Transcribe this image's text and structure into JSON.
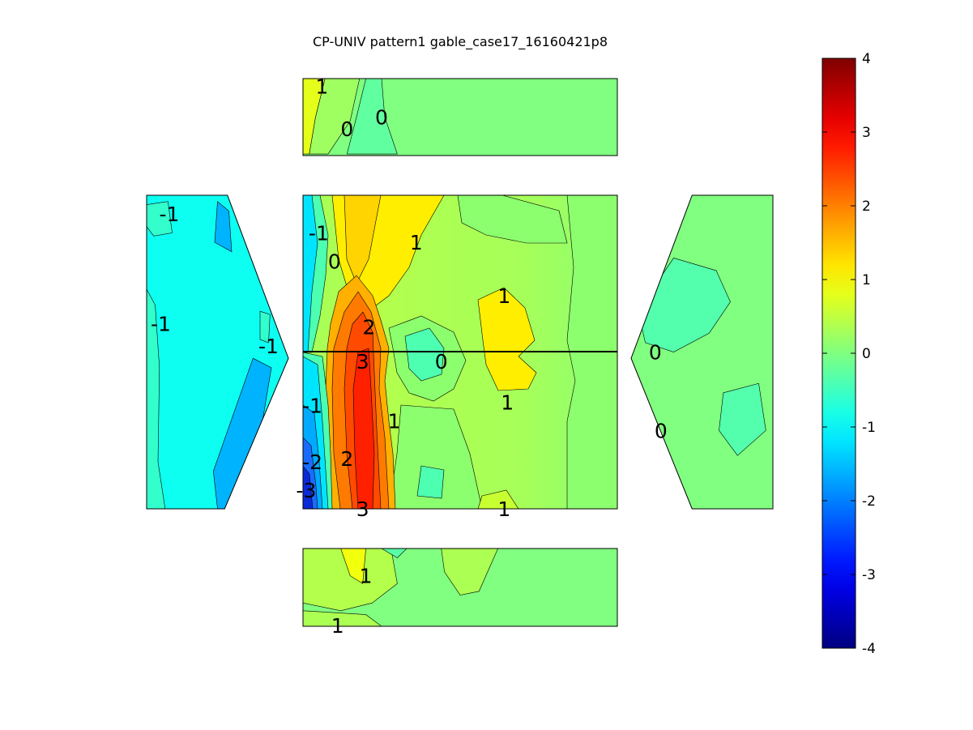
{
  "chart_data": {
    "type": "contour",
    "title": "CP-UNIV pattern1 gable_case17_16160421p8",
    "colorbar": {
      "min": -4,
      "max": 4,
      "ticks": [
        4,
        3,
        2,
        1,
        0,
        -1,
        -2,
        -3,
        -4
      ],
      "colormap": "jet"
    },
    "panels": [
      {
        "name": "top-face",
        "background_value": 0.0,
        "regions": [
          {
            "value": 0.8,
            "points": [
              [
                0,
                0
              ],
              [
                0.07,
                0
              ],
              [
                0.04,
                0.5
              ],
              [
                0.02,
                0.98
              ],
              [
                0,
                0.98
              ]
            ]
          },
          {
            "value": 0.25,
            "points": [
              [
                0.07,
                0
              ],
              [
                0.18,
                0
              ],
              [
                0.15,
                0.55
              ],
              [
                0.08,
                0.98
              ],
              [
                0.02,
                0.98
              ],
              [
                0.04,
                0.5
              ]
            ]
          },
          {
            "value": -0.25,
            "points": [
              [
                0.2,
                0
              ],
              [
                0.25,
                0
              ],
              [
                0.26,
                0.5
              ],
              [
                0.3,
                0.98
              ],
              [
                0.14,
                0.98
              ],
              [
                0.17,
                0.5
              ]
            ]
          }
        ],
        "labels": [
          {
            "text": "1",
            "x": 0.06,
            "y": 0.1
          },
          {
            "text": "0",
            "x": 0.14,
            "y": 0.65
          },
          {
            "text": "0",
            "x": 0.25,
            "y": 0.5
          }
        ]
      },
      {
        "name": "left-face",
        "background_value": -0.9,
        "regions": [
          {
            "value": -0.6,
            "points": [
              [
                0,
                0.03
              ],
              [
                0.15,
                0.02
              ],
              [
                0.18,
                0.12
              ],
              [
                0.05,
                0.13
              ],
              [
                0,
                0.1
              ]
            ]
          },
          {
            "value": -1.6,
            "points": [
              [
                0.5,
                0.02
              ],
              [
                0.58,
                0.05
              ],
              [
                0.6,
                0.18
              ],
              [
                0.48,
                0.15
              ]
            ]
          },
          {
            "value": -0.6,
            "points": [
              [
                0,
                0.3
              ],
              [
                0.06,
                0.35
              ],
              [
                0.09,
                0.55
              ],
              [
                0.08,
                0.85
              ],
              [
                0.13,
                1
              ],
              [
                0,
                1
              ]
            ]
          },
          {
            "value": -1.6,
            "points": [
              [
                0.75,
                0.52
              ],
              [
                0.88,
                0.55
              ],
              [
                0.78,
                0.82
              ],
              [
                0.62,
                1
              ],
              [
                0.5,
                1
              ],
              [
                0.47,
                0.88
              ]
            ]
          },
          {
            "value": -0.6,
            "points": [
              [
                0.8,
                0.37
              ],
              [
                0.87,
                0.38
              ],
              [
                0.86,
                0.47
              ],
              [
                0.8,
                0.46
              ]
            ]
          }
        ],
        "labels": [
          {
            "text": "-1",
            "x": 0.16,
            "y": 0.06
          },
          {
            "text": "-1",
            "x": 0.1,
            "y": 0.41
          },
          {
            "text": "-1",
            "x": 0.86,
            "y": 0.48
          }
        ]
      },
      {
        "name": "main-face",
        "background_value": 0.3,
        "labels": [
          {
            "text": "-1",
            "x": 0.05,
            "y": 0.12
          },
          {
            "text": "0",
            "x": 0.1,
            "y": 0.21
          },
          {
            "text": "1",
            "x": 0.36,
            "y": 0.15
          },
          {
            "text": "1",
            "x": 0.64,
            "y": 0.32
          },
          {
            "text": "2",
            "x": 0.21,
            "y": 0.42
          },
          {
            "text": "3",
            "x": 0.19,
            "y": 0.53
          },
          {
            "text": "0",
            "x": 0.44,
            "y": 0.53
          },
          {
            "text": "-1",
            "x": 0.03,
            "y": 0.67
          },
          {
            "text": "1",
            "x": 0.65,
            "y": 0.66
          },
          {
            "text": "1",
            "x": 0.29,
            "y": 0.72
          },
          {
            "text": "2",
            "x": 0.14,
            "y": 0.84
          },
          {
            "text": "-2",
            "x": 0.03,
            "y": 0.85
          },
          {
            "text": "-3",
            "x": 0.01,
            "y": 0.94
          },
          {
            "text": "3",
            "x": 0.19,
            "y": 1.0
          },
          {
            "text": "1",
            "x": 0.64,
            "y": 1.0
          }
        ]
      },
      {
        "name": "right-face",
        "background_value": 0.0,
        "regions": [
          {
            "value": -0.35,
            "points": [
              [
                0.3,
                0.2
              ],
              [
                0.6,
                0.24
              ],
              [
                0.7,
                0.34
              ],
              [
                0.55,
                0.44
              ],
              [
                0.3,
                0.5
              ],
              [
                0.1,
                0.47
              ],
              [
                0.05,
                0.37
              ],
              [
                0.15,
                0.3
              ]
            ]
          },
          {
            "value": -0.35,
            "points": [
              [
                0.65,
                0.63
              ],
              [
                0.9,
                0.6
              ],
              [
                0.95,
                0.75
              ],
              [
                0.75,
                0.83
              ],
              [
                0.62,
                0.75
              ]
            ]
          }
        ],
        "labels": [
          {
            "text": "0",
            "x": 0.17,
            "y": 0.5
          },
          {
            "text": "0",
            "x": 0.21,
            "y": 0.75
          }
        ]
      },
      {
        "name": "bottom-face",
        "background_value": 0.0,
        "regions": [
          {
            "value": 0.4,
            "points": [
              [
                0,
                0
              ],
              [
                0.28,
                0
              ],
              [
                0.3,
                0.45
              ],
              [
                0.22,
                0.7
              ],
              [
                0.12,
                0.8
              ],
              [
                0,
                0.7
              ]
            ]
          },
          {
            "value": 0.9,
            "points": [
              [
                0.12,
                0
              ],
              [
                0.2,
                0
              ],
              [
                0.19,
                0.45
              ],
              [
                0.15,
                0.35
              ]
            ]
          },
          {
            "value": -0.3,
            "points": [
              [
                0.25,
                0
              ],
              [
                0.33,
                0
              ],
              [
                0.3,
                0.12
              ]
            ]
          },
          {
            "value": 0.35,
            "points": [
              [
                0.44,
                0
              ],
              [
                0.62,
                0
              ],
              [
                0.56,
                0.55
              ],
              [
                0.5,
                0.6
              ],
              [
                0.45,
                0.3
              ]
            ]
          },
          {
            "value": 0.35,
            "points": [
              [
                0,
                0.8
              ],
              [
                0.2,
                0.85
              ],
              [
                0.25,
                1
              ],
              [
                0,
                1
              ]
            ]
          }
        ],
        "labels": [
          {
            "text": "1",
            "x": 0.2,
            "y": 0.35
          },
          {
            "text": "1",
            "x": 0.11,
            "y": 0.99
          }
        ]
      }
    ]
  }
}
